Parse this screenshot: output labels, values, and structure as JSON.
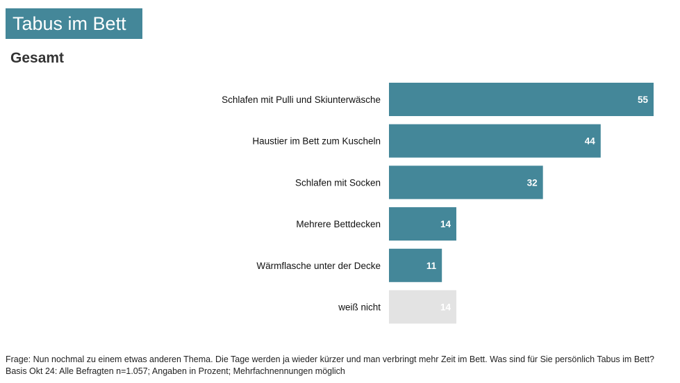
{
  "header": {
    "title": "Tabus im Bett",
    "subtitle": "Gesamt"
  },
  "chart_data": {
    "type": "bar",
    "orientation": "horizontal",
    "categories": [
      "Schlafen mit Pulli und Skiunterwäsche",
      "Haustier im Bett zum Kuscheln",
      "Schlafen mit Socken",
      "Mehrere Bettdecken",
      "Wärmflasche unter der Decke",
      "weiß nicht"
    ],
    "values": [
      55,
      44,
      32,
      14,
      11,
      14
    ],
    "colors": [
      "#448799",
      "#448799",
      "#448799",
      "#448799",
      "#448799",
      "#e3e3e3"
    ],
    "unit": "%",
    "xlim": [
      0,
      55
    ],
    "grid": false
  },
  "footer": {
    "question": "Frage: Nun nochmal zu einem etwas anderen Thema. Die Tage werden ja wieder kürzer und man verbringt mehr Zeit im Bett. Was sind für Sie persönlich Tabus im Bett?",
    "basis": "Basis Okt 24: Alle Befragten n=1.057; Angaben in Prozent; Mehrfachnennungen möglich"
  }
}
